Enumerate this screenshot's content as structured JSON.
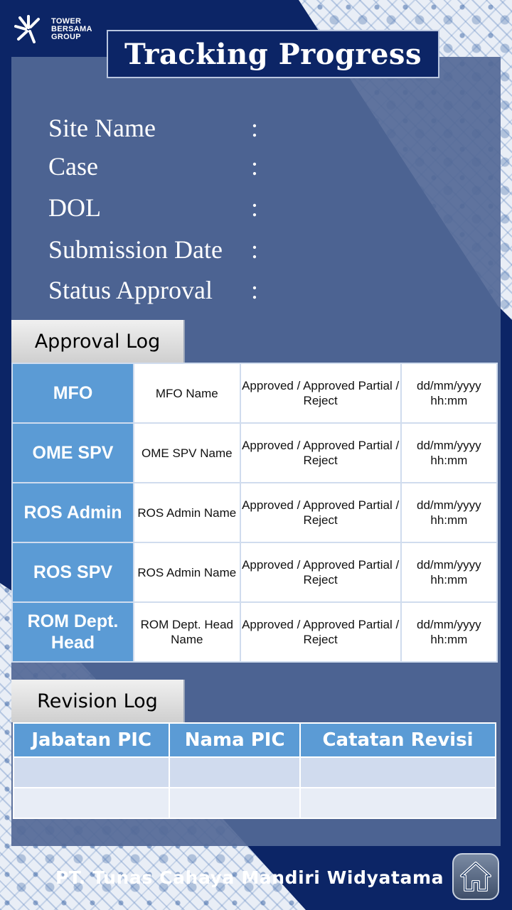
{
  "logo": {
    "line1": "TOWER",
    "line2": "BERSAMA",
    "line3": "GROUP",
    "icon": "sunburst-logo-icon"
  },
  "title": "Tracking Progress",
  "info_fields": [
    {
      "label": "Site Name",
      "colon": ":"
    },
    {
      "label": "Case",
      "colon": ":"
    },
    {
      "label": "DOL",
      "colon": ":"
    },
    {
      "label": "Submission Date",
      "colon": ":"
    },
    {
      "label": "Status Approval",
      "colon": ":"
    }
  ],
  "approval_log": {
    "tab_label": "Approval Log",
    "rows": [
      {
        "role": "MFO",
        "name": "MFO Name",
        "status": "Approved / Approved Partial / Reject",
        "date": "dd/mm/yyyy hh:mm"
      },
      {
        "role": "OME SPV",
        "name": "OME SPV Name",
        "status": "Approved / Approved Partial / Reject",
        "date": "dd/mm/yyyy hh:mm"
      },
      {
        "role": "ROS Admin",
        "name": "ROS Admin Name",
        "status": "Approved / Approved Partial / Reject",
        "date": "dd/mm/yyyy hh:mm"
      },
      {
        "role": "ROS SPV",
        "name": "ROS Admin Name",
        "status": "Approved / Approved Partial / Reject",
        "date": "dd/mm/yyyy hh:mm"
      },
      {
        "role": "ROM Dept. Head",
        "name": "ROM Dept. Head Name",
        "status": "Approved / Approved Partial / Reject",
        "date": "dd/mm/yyyy hh:mm"
      }
    ]
  },
  "revision_log": {
    "tab_label": "Revision Log",
    "headers": [
      "Jabatan PIC",
      "Nama PIC",
      "Catatan Revisi"
    ]
  },
  "footer": {
    "company": "PT. Tunas Cahaya Mandiri Widyatama",
    "home_icon": "home-icon"
  },
  "colors": {
    "background": "#0c2566",
    "panel": "#52689a",
    "accent": "#5b9bd5"
  }
}
